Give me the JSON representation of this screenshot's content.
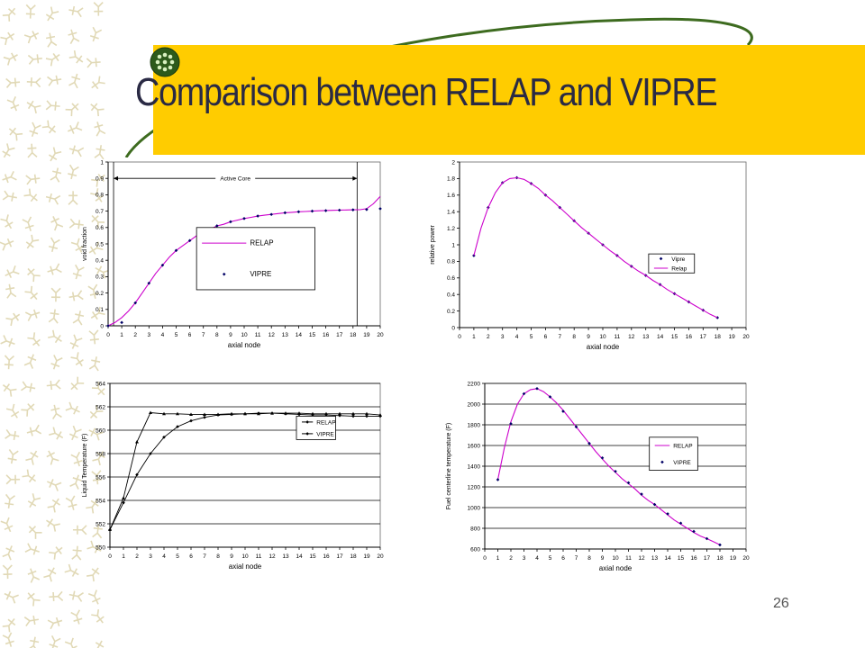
{
  "slide": {
    "title": "Comparison between RELAP and VIPRE",
    "page_number": "26"
  },
  "colors": {
    "title_band": "#FFCC00",
    "title_text": "#2a2a44",
    "relap_line": "#CC00CC",
    "vipre_marker": "#000066",
    "pattern": "#c9b97a"
  },
  "chart_data": [
    {
      "type": "line",
      "xlabel": "axial node",
      "ylabel": "void fraction",
      "xlim": [
        0,
        20
      ],
      "ylim": [
        0,
        1
      ],
      "xticks": [
        0,
        1,
        2,
        3,
        4,
        5,
        6,
        7,
        8,
        9,
        10,
        11,
        12,
        13,
        14,
        15,
        16,
        17,
        18,
        19,
        20
      ],
      "yticks": [
        0,
        0.1,
        0.2,
        0.3,
        0.4,
        0.5,
        0.6,
        0.7,
        0.8,
        0.9,
        1
      ],
      "ytick_labels": [
        "0",
        "0.1",
        "0.2",
        "0.3",
        "0.4",
        "0.5",
        "0.6",
        "0.7",
        "0.8",
        "0.9",
        "1"
      ],
      "grid": "none",
      "legend_position": "center-right",
      "annotation": "Active Core",
      "active_core_range": [
        0.4,
        18.3
      ],
      "series": [
        {
          "name": "RELAP",
          "style": "line",
          "x": [
            0,
            0.5,
            1,
            1.5,
            2,
            2.5,
            3,
            3.5,
            4,
            4.5,
            5,
            5.5,
            6,
            6.5,
            7,
            7.5,
            8,
            8.5,
            9,
            9.5,
            10,
            10.5,
            11,
            11.5,
            12,
            12.5,
            13,
            13.5,
            14,
            14.5,
            15,
            15.5,
            16,
            16.5,
            17,
            17.5,
            18,
            18.5,
            19,
            19.5,
            20
          ],
          "y": [
            0,
            0.02,
            0.05,
            0.09,
            0.14,
            0.2,
            0.26,
            0.32,
            0.37,
            0.42,
            0.46,
            0.49,
            0.52,
            0.55,
            0.57,
            0.59,
            0.61,
            0.62,
            0.635,
            0.645,
            0.655,
            0.662,
            0.67,
            0.675,
            0.68,
            0.685,
            0.69,
            0.693,
            0.696,
            0.698,
            0.7,
            0.702,
            0.704,
            0.705,
            0.706,
            0.707,
            0.708,
            0.709,
            0.715,
            0.745,
            0.79
          ]
        },
        {
          "name": "VIPRE",
          "style": "markers",
          "x": [
            0,
            1,
            2,
            3,
            4,
            5,
            6,
            7,
            8,
            9,
            10,
            11,
            12,
            13,
            14,
            15,
            16,
            17,
            18,
            19,
            20
          ],
          "y": [
            0,
            0.02,
            0.14,
            0.26,
            0.37,
            0.46,
            0.52,
            0.57,
            0.61,
            0.635,
            0.655,
            0.67,
            0.68,
            0.69,
            0.696,
            0.7,
            0.703,
            0.706,
            0.708,
            0.71,
            0.715
          ]
        }
      ]
    },
    {
      "type": "line",
      "xlabel": "axial node",
      "ylabel": "relative power",
      "xlim": [
        0,
        20
      ],
      "ylim": [
        0,
        2
      ],
      "xticks": [
        0,
        1,
        2,
        3,
        4,
        5,
        6,
        7,
        8,
        9,
        10,
        11,
        12,
        13,
        14,
        15,
        16,
        17,
        18,
        19,
        20
      ],
      "yticks": [
        0,
        0.2,
        0.4,
        0.6,
        0.8,
        1,
        1.2,
        1.4,
        1.6,
        1.8,
        2
      ],
      "ytick_labels": [
        "0",
        "0.2",
        "0.4",
        "0.6",
        "0.8",
        "1",
        "1.2",
        "1.4",
        "1.6",
        "1.8",
        "2"
      ],
      "grid": "none",
      "legend_position": "right",
      "series": [
        {
          "name": "Vipre",
          "style": "markers",
          "x": [
            1,
            2,
            3,
            4,
            5,
            6,
            7,
            8,
            9,
            10,
            11,
            12,
            13,
            14,
            15,
            16,
            17,
            18
          ],
          "y": [
            0.87,
            1.45,
            1.75,
            1.81,
            1.74,
            1.6,
            1.45,
            1.29,
            1.14,
            1.0,
            0.87,
            0.74,
            0.63,
            0.52,
            0.41,
            0.31,
            0.21,
            0.12
          ]
        },
        {
          "name": "Relap",
          "style": "line",
          "x": [
            1,
            1.5,
            2,
            2.5,
            3,
            3.5,
            4,
            4.5,
            5,
            5.5,
            6,
            6.5,
            7,
            7.5,
            8,
            8.5,
            9,
            9.5,
            10,
            10.5,
            11,
            11.5,
            12,
            12.5,
            13,
            13.5,
            14,
            14.5,
            15,
            15.5,
            16,
            16.5,
            17,
            17.5,
            18
          ],
          "y": [
            0.87,
            1.2,
            1.45,
            1.63,
            1.75,
            1.8,
            1.81,
            1.79,
            1.74,
            1.68,
            1.6,
            1.53,
            1.45,
            1.37,
            1.29,
            1.21,
            1.14,
            1.07,
            1.0,
            0.93,
            0.87,
            0.8,
            0.74,
            0.68,
            0.63,
            0.57,
            0.52,
            0.46,
            0.41,
            0.36,
            0.31,
            0.26,
            0.21,
            0.16,
            0.12
          ]
        }
      ]
    },
    {
      "type": "line",
      "xlabel": "axial node",
      "ylabel": "Liquid Temperature (F)",
      "xlim": [
        0,
        20
      ],
      "ylim": [
        550,
        564
      ],
      "xticks": [
        0,
        1,
        2,
        3,
        4,
        5,
        6,
        7,
        8,
        9,
        10,
        11,
        12,
        13,
        14,
        15,
        16,
        17,
        18,
        19,
        20
      ],
      "yticks": [
        550,
        552,
        554,
        556,
        558,
        560,
        562,
        564
      ],
      "ytick_labels": [
        "550",
        "552",
        "554",
        "556",
        "558",
        "560",
        "562",
        "564"
      ],
      "grid": "horizontal",
      "legend_position": "top-right",
      "series": [
        {
          "name": "RELAP",
          "style": "line+markers",
          "x": [
            0,
            1,
            2,
            3,
            4,
            5,
            6,
            7,
            8,
            9,
            10,
            11,
            12,
            13,
            14,
            15,
            16,
            17,
            18,
            19,
            20
          ],
          "y": [
            551.5,
            554.2,
            559.0,
            561.5,
            561.4,
            561.4,
            561.35,
            561.35,
            561.35,
            561.4,
            561.4,
            561.4,
            561.45,
            561.45,
            561.45,
            561.4,
            561.4,
            561.4,
            561.4,
            561.4,
            561.3
          ]
        },
        {
          "name": "VIPRE",
          "style": "line+markers",
          "x": [
            0,
            1,
            2,
            3,
            4,
            5,
            6,
            7,
            8,
            9,
            10,
            11,
            12,
            13,
            14,
            15,
            16,
            17,
            18,
            19,
            20
          ],
          "y": [
            551.5,
            553.8,
            556.2,
            558.0,
            559.4,
            560.3,
            560.8,
            561.1,
            561.3,
            561.35,
            561.4,
            561.45,
            561.45,
            561.4,
            561.35,
            561.3,
            561.3,
            561.25,
            561.2,
            561.2,
            561.2
          ]
        }
      ]
    },
    {
      "type": "line",
      "xlabel": "axial node",
      "ylabel": "Fuel centerline temperature (F)",
      "xlim": [
        0,
        20
      ],
      "ylim": [
        600,
        2200
      ],
      "xticks": [
        0,
        1,
        2,
        3,
        4,
        5,
        6,
        7,
        8,
        9,
        10,
        11,
        12,
        13,
        14,
        15,
        16,
        17,
        18,
        19,
        20
      ],
      "yticks": [
        600,
        800,
        1000,
        1200,
        1400,
        1600,
        1800,
        2000,
        2200
      ],
      "ytick_labels": [
        "600",
        "800",
        "1000",
        "1200",
        "1400",
        "1600",
        "1800",
        "2000",
        "2200"
      ],
      "grid": "horizontal",
      "legend_position": "right",
      "series": [
        {
          "name": "RELAP",
          "style": "line",
          "x": [
            1,
            1.5,
            2,
            2.5,
            3,
            3.5,
            4,
            4.5,
            5,
            5.5,
            6,
            6.5,
            7,
            7.5,
            8,
            8.5,
            9,
            9.5,
            10,
            10.5,
            11,
            11.5,
            12,
            12.5,
            13,
            13.5,
            14,
            14.5,
            15,
            15.5,
            16,
            16.5,
            17,
            17.5,
            18
          ],
          "y": [
            1270,
            1580,
            1830,
            2000,
            2100,
            2140,
            2150,
            2120,
            2070,
            2010,
            1940,
            1860,
            1780,
            1700,
            1620,
            1540,
            1470,
            1400,
            1340,
            1280,
            1230,
            1180,
            1120,
            1070,
            1030,
            980,
            930,
            880,
            840,
            800,
            760,
            725,
            700,
            670,
            640
          ]
        },
        {
          "name": "VIPRE",
          "style": "markers",
          "x": [
            1,
            2,
            3,
            4,
            5,
            6,
            7,
            8,
            9,
            10,
            11,
            12,
            13,
            14,
            15,
            16,
            17,
            18
          ],
          "y": [
            1270,
            1810,
            2100,
            2150,
            2070,
            1930,
            1780,
            1620,
            1480,
            1350,
            1240,
            1130,
            1030,
            940,
            850,
            770,
            700,
            640
          ]
        }
      ]
    }
  ]
}
